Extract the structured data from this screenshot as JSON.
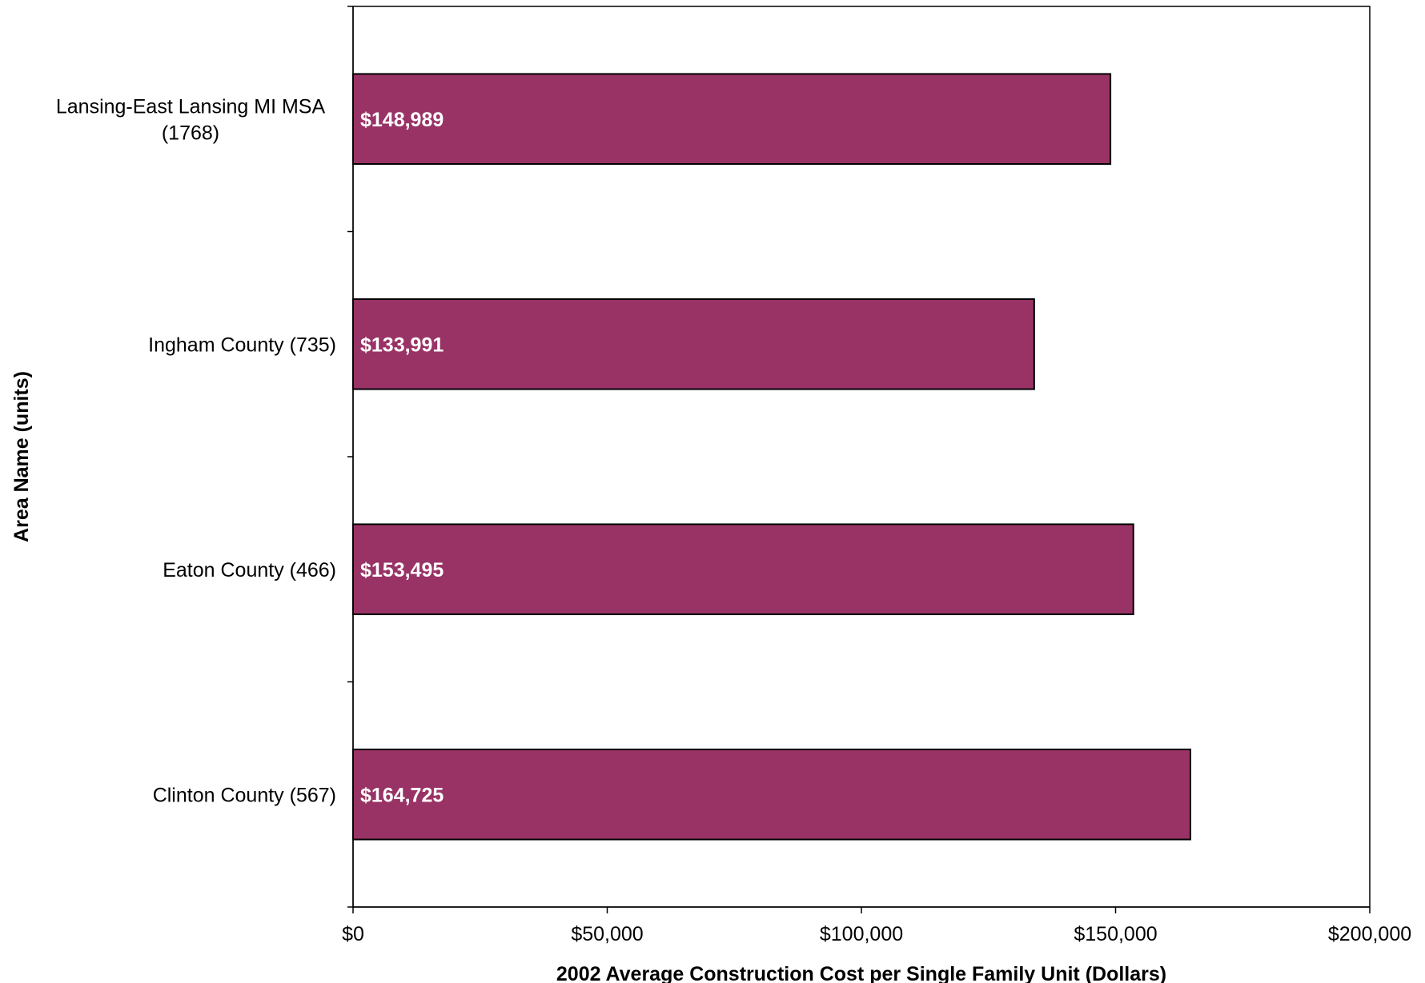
{
  "chart_data": {
    "type": "bar",
    "orientation": "horizontal",
    "categories": [
      [
        "Lansing-East Lansing  MI MSA",
        "(1768)"
      ],
      [
        "Ingham County (735)"
      ],
      [
        "Eaton County (466)"
      ],
      [
        "Clinton County (567)"
      ]
    ],
    "values": [
      148989,
      133991,
      153495,
      164725
    ],
    "data_labels": [
      "$148,989",
      "$133,991",
      "$153,495",
      "$164,725"
    ],
    "xlabel": "2002 Average Construction Cost per Single Family Unit (Dollars)",
    "ylabel": "Area Name (units)",
    "xlim": [
      0,
      200000
    ],
    "xticks": [
      0,
      50000,
      100000,
      150000,
      200000
    ],
    "xtick_labels": [
      "$0",
      "$50,000",
      "$100,000",
      "$150,000",
      "$200,000"
    ],
    "grid": false,
    "legend": "none",
    "bar_color": "#993366",
    "bar_edge_color": "#000000"
  }
}
